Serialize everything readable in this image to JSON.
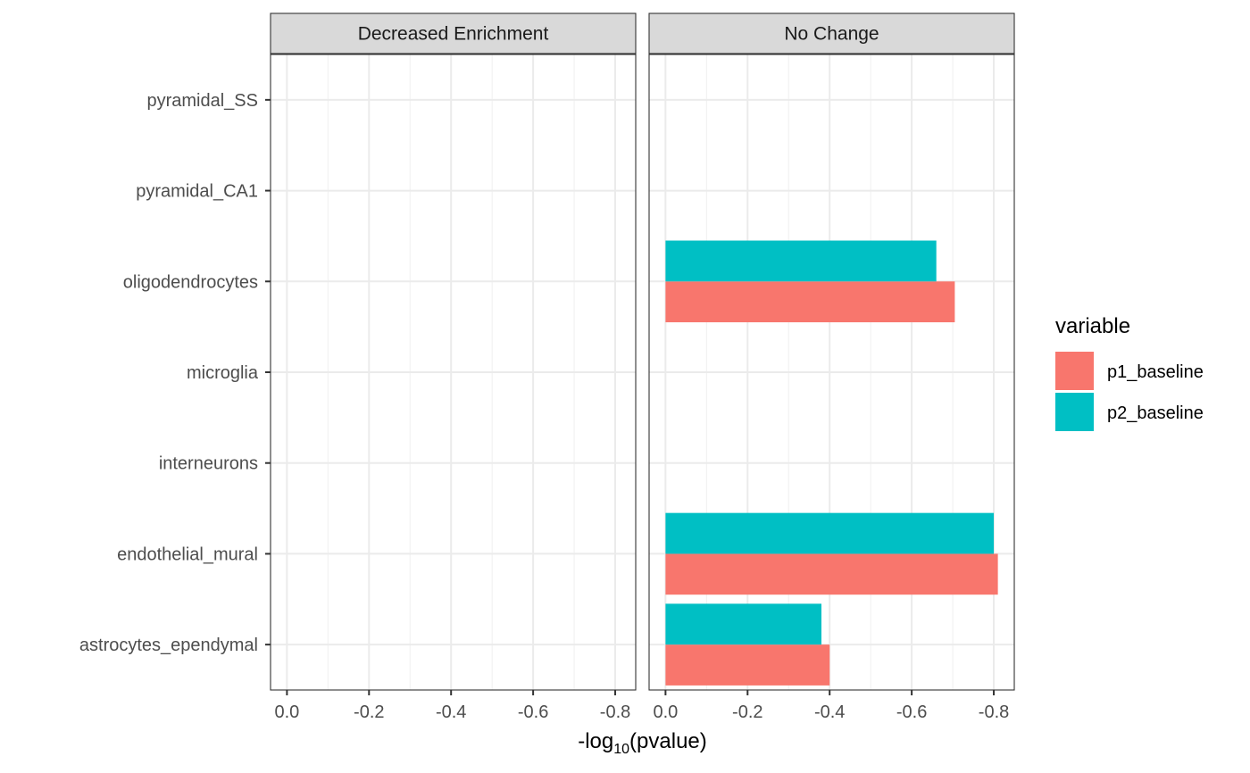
{
  "chart_data": {
    "type": "bar",
    "orientation": "horizontal",
    "facets": [
      "Decreased Enrichment",
      "No Change"
    ],
    "categories": [
      "astrocytes_ependymal",
      "endothelial_mural",
      "interneurons",
      "microglia",
      "oligodendrocytes",
      "pyramidal_CA1",
      "pyramidal_SS"
    ],
    "series": [
      {
        "name": "p1_baseline",
        "color": "#F8766D",
        "values": {
          "Decreased Enrichment": [
            null,
            null,
            null,
            null,
            null,
            null,
            null
          ],
          "No Change": [
            -0.4,
            -0.81,
            null,
            null,
            -0.705,
            null,
            null
          ]
        }
      },
      {
        "name": "p2_baseline",
        "color": "#00BFC4",
        "values": {
          "Decreased Enrichment": [
            null,
            null,
            null,
            null,
            null,
            null,
            null
          ],
          "No Change": [
            -0.38,
            -0.8,
            null,
            null,
            -0.66,
            null,
            null
          ]
        }
      }
    ],
    "xlim": [
      0.04,
      -0.85
    ],
    "x_ticks": [
      0.0,
      -0.2,
      -0.4,
      -0.6,
      -0.8
    ],
    "x_tick_labels": [
      "0.0",
      "-0.2",
      "-0.4",
      "-0.6",
      "-0.8"
    ],
    "xlabel_prefix": "-log",
    "xlabel_subscript": "10",
    "xlabel_suffix": "(pvalue)",
    "ylabel": "",
    "legend": {
      "title": "variable",
      "position": "right",
      "entries": [
        "p1_baseline",
        "p2_baseline"
      ]
    },
    "grid": true
  }
}
